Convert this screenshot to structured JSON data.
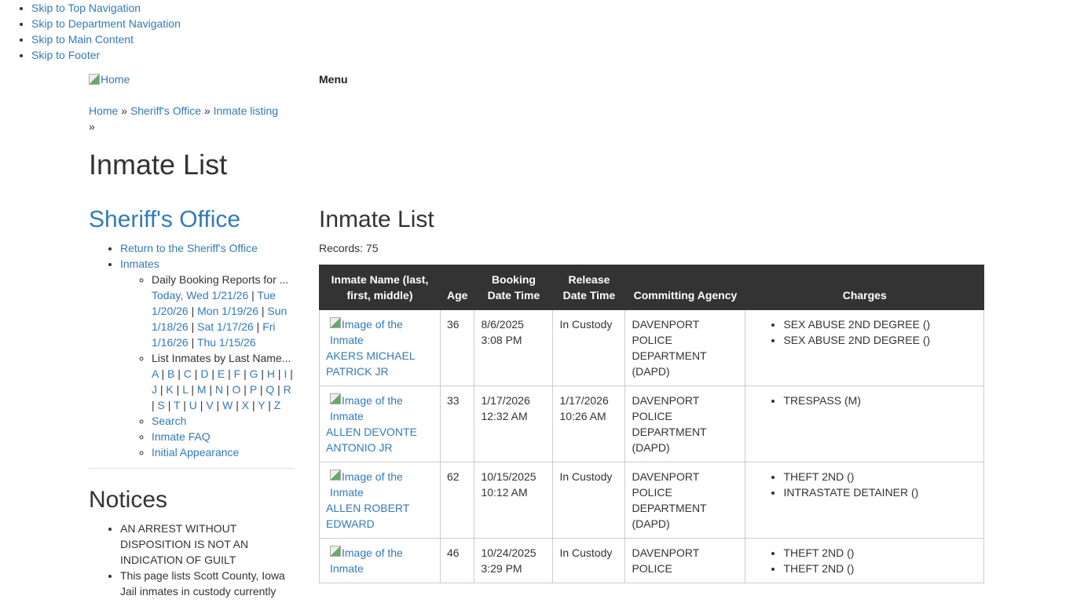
{
  "skip_links": [
    "Skip to Top Navigation",
    "Skip to Department Navigation",
    "Skip to Main Content",
    "Skip to Footer"
  ],
  "header": {
    "home_alt": "Home",
    "menu_label": "Menu"
  },
  "breadcrumb": {
    "items": [
      "Home",
      "Sheriff's Office",
      "Inmate listing"
    ],
    "sep": "»"
  },
  "page_title": "Inmate List",
  "sidebar": {
    "title": "Sheriff's Office",
    "return_link": "Return to the Sheriff's Office",
    "inmates_link": "Inmates",
    "daily_label": "Daily Booking Reports for ...",
    "daily_links": [
      "Today, Wed 1/21/26",
      "Tue 1/20/26",
      "Mon 1/19/26",
      "Sun 1/18/26",
      "Sat 1/17/26",
      "Fri 1/16/26",
      "Thu 1/15/26"
    ],
    "lastname_label": "List Inmates by Last Name...",
    "letters": [
      "A",
      "B",
      "C",
      "D",
      "E",
      "F",
      "G",
      "H",
      "I",
      "J",
      "K",
      "L",
      "M",
      "N",
      "O",
      "P",
      "Q",
      "R",
      "S",
      "T",
      "U",
      "V",
      "W",
      "X",
      "Y",
      "Z"
    ],
    "search": "Search",
    "faq": "Inmate FAQ",
    "initial": "Initial Appearance",
    "notices_title": "Notices",
    "notices": [
      "AN ARREST WITHOUT DISPOSITION IS NOT AN INDICATION OF GUILT",
      "This page lists Scott County, Iowa Jail inmates in custody currently"
    ]
  },
  "main": {
    "title": "Inmate List",
    "records": "Records: 75",
    "image_alt": "Image of the Inmate",
    "columns": [
      "Inmate Name (last, first, middle)",
      "Age",
      "Booking Date Time",
      "Release Date Time",
      "Committing Agency",
      "Charges"
    ],
    "rows": [
      {
        "name": "AKERS MICHAEL PATRICK JR",
        "age": "36",
        "booking": "8/6/2025 3:08 PM",
        "release": "In Custody",
        "agency": "DAVENPORT POLICE DEPARTMENT (DAPD)",
        "charges": [
          "SEX ABUSE 2ND DEGREE ()",
          "SEX ABUSE 2ND DEGREE ()"
        ]
      },
      {
        "name": "ALLEN DEVONTE ANTONIO JR",
        "age": "33",
        "booking": "1/17/2026 12:32 AM",
        "release": "1/17/2026 10:26 AM",
        "agency": "DAVENPORT POLICE DEPARTMENT (DAPD)",
        "charges": [
          "TRESPASS (M)"
        ]
      },
      {
        "name": "ALLEN ROBERT EDWARD",
        "age": "62",
        "booking": "10/15/2025 10:12 AM",
        "release": "In Custody",
        "agency": "DAVENPORT POLICE DEPARTMENT (DAPD)",
        "charges": [
          "THEFT 2ND ()",
          "INTRASTATE DETAINER ()"
        ]
      },
      {
        "name": "",
        "age": "46",
        "booking": "10/24/2025 3:29 PM",
        "release": "In Custody",
        "agency": "DAVENPORT POLICE",
        "charges": [
          "THEFT 2ND ()",
          "THEFT 2ND ()"
        ]
      }
    ]
  },
  "colors": {
    "link": "#337ab7",
    "table_header": "#333333"
  }
}
